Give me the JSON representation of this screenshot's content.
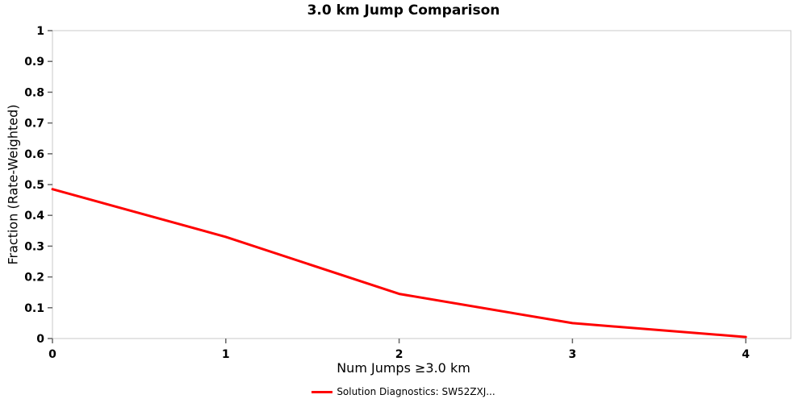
{
  "chart_data": {
    "type": "line",
    "title": "3.0 km Jump Comparison",
    "xlabel": "Num Jumps ≥3.0 km",
    "ylabel": "Fraction (Rate-Weighted)",
    "x": [
      0,
      1,
      2,
      3,
      4
    ],
    "values": [
      0.485,
      0.33,
      0.145,
      0.05,
      0.005
    ],
    "series_name": "Solution Diagnostics: SW52ZXJ...",
    "xlim": [
      0,
      4.26
    ],
    "ylim": [
      0,
      1
    ],
    "x_ticks": [
      "0",
      "1",
      "2",
      "3",
      "4"
    ],
    "y_ticks": [
      "0",
      "0.1",
      "0.2",
      "0.3",
      "0.4",
      "0.5",
      "0.6",
      "0.7",
      "0.8",
      "0.9",
      "1"
    ],
    "grid": false,
    "legend_position": "bottom",
    "line_color": "#ff0000",
    "plot_border_color": "#c8c8c8",
    "tick_color": "#666666",
    "text_color": "#000000"
  }
}
